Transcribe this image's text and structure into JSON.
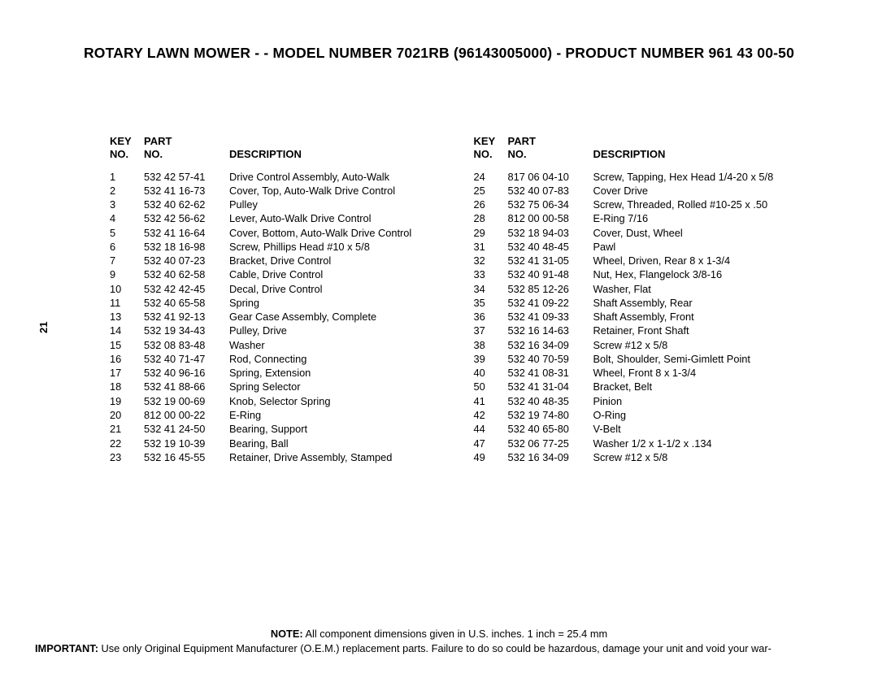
{
  "title": {
    "prefix": "ROTARY LAWN MOWER - - MODEL NUMBER ",
    "model": "7021RB",
    "mid": "  (96143005000) - PRODUCT NUMBER 961 43 00-50"
  },
  "page_number": "21",
  "headers": {
    "key_line1": "KEY",
    "key_line2": "NO.",
    "part_line1": "PART",
    "part_line2": "NO.",
    "desc": "DESCRIPTION"
  },
  "columns": [
    [
      {
        "key": "1",
        "part": "532 42 57-41",
        "desc": "Drive Control Assembly, Auto-Walk"
      },
      {
        "key": "2",
        "part": "532 41 16-73",
        "desc": "Cover, Top, Auto-Walk Drive Control"
      },
      {
        "key": "3",
        "part": "532 40 62-62",
        "desc": "Pulley"
      },
      {
        "key": "4",
        "part": "532 42 56-62",
        "desc": "Lever, Auto-Walk Drive Control"
      },
      {
        "key": "5",
        "part": "532 41 16-64",
        "desc": "Cover, Bottom, Auto-Walk Drive Control"
      },
      {
        "key": "6",
        "part": "532 18 16-98",
        "desc": "Screw, Phillips Head  #10 x 5/8"
      },
      {
        "key": "7",
        "part": "532 40 07-23",
        "desc": "Bracket, Drive Control"
      },
      {
        "key": "9",
        "part": "532 40 62-58",
        "desc": "Cable, Drive Control"
      },
      {
        "key": "10",
        "part": "532 42 42-45",
        "desc": "Decal, Drive Control"
      },
      {
        "key": "11",
        "part": "532 40 65-58",
        "desc": "Spring"
      },
      {
        "key": "13",
        "part": "532 41 92-13",
        "desc": "Gear Case Assembly, Complete"
      },
      {
        "key": "14",
        "part": "532 19 34-43",
        "desc": "Pulley, Drive"
      },
      {
        "key": "15",
        "part": "532 08 83-48",
        "desc": "Washer"
      },
      {
        "key": "16",
        "part": "532 40 71-47",
        "desc": "Rod, Connecting"
      },
      {
        "key": "17",
        "part": "532 40 96-16",
        "desc": "Spring, Extension"
      },
      {
        "key": "18",
        "part": "532 41 88-66",
        "desc": "Spring Selector"
      },
      {
        "key": "19",
        "part": "532 19 00-69",
        "desc": "Knob, Selector Spring"
      },
      {
        "key": "20",
        "part": "812 00 00-22",
        "desc": "E-Ring"
      },
      {
        "key": "21",
        "part": "532 41 24-50",
        "desc": "Bearing, Support"
      },
      {
        "key": "22",
        "part": "532 19 10-39",
        "desc": "Bearing, Ball"
      },
      {
        "key": "23",
        "part": "532 16 45-55",
        "desc": "Retainer, Drive Assembly, Stamped"
      }
    ],
    [
      {
        "key": "24",
        "part": "817 06 04-10",
        "desc": "Screw, Tapping, Hex Head  1/4-20 x 5/8"
      },
      {
        "key": "25",
        "part": "532 40 07-83",
        "desc": "Cover Drive"
      },
      {
        "key": "26",
        "part": "532 75 06-34",
        "desc": "Screw, Threaded, Rolled  #10-25 x .50"
      },
      {
        "key": "28",
        "part": "812 00 00-58",
        "desc": "E-Ring  7/16"
      },
      {
        "key": "29",
        "part": "532 18 94-03",
        "desc": "Cover, Dust, Wheel"
      },
      {
        "key": "31",
        "part": "532 40 48-45",
        "desc": "Pawl"
      },
      {
        "key": "32",
        "part": "532 41 31-05",
        "desc": "Wheel, Driven, Rear  8 x 1-3/4"
      },
      {
        "key": "33",
        "part": "532 40 91-48",
        "desc": "Nut, Hex, Flangelock  3/8-16"
      },
      {
        "key": "34",
        "part": "532 85 12-26",
        "desc": "Washer, Flat"
      },
      {
        "key": "35",
        "part": "532 41 09-22",
        "desc": "Shaft Assembly, Rear"
      },
      {
        "key": "36",
        "part": "532 41 09-33",
        "desc": "Shaft Assembly, Front"
      },
      {
        "key": "37",
        "part": "532 16 14-63",
        "desc": "Retainer, Front Shaft"
      },
      {
        "key": "38",
        "part": "532 16 34-09",
        "desc": "Screw  #12 x 5/8"
      },
      {
        "key": "39",
        "part": "532 40 70-59",
        "desc": "Bolt, Shoulder, Semi-Gimlett Point"
      },
      {
        "key": "40",
        "part": "532 41 08-31",
        "desc": "Wheel, Front  8 x 1-3/4"
      },
      {
        "key": "50",
        "part": "532 41 31-04",
        "desc": "Bracket, Belt"
      },
      {
        "key": "41",
        "part": "532 40 48-35",
        "desc": "Pinion"
      },
      {
        "key": "42",
        "part": "532 19 74-80",
        "desc": "O-Ring"
      },
      {
        "key": "44",
        "part": "532 40 65-80",
        "desc": "V-Belt"
      },
      {
        "key": "47",
        "part": "532 06 77-25",
        "desc": "Washer  1/2 x 1-1/2  x .134"
      },
      {
        "key": "49",
        "part": "532 16 34-09",
        "desc": "Screw  #12 x 5/8"
      }
    ]
  ],
  "footer": {
    "note_label": "NOTE:",
    "note_text": "  All component dimensions given in U.S. inches.  1 inch = 25.4 mm",
    "imp_label": "IMPORTANT:",
    "imp_text": " Use only Original Equipment Manufacturer (O.E.M.) replacement parts.  Failure to do so could be hazardous, damage your unit and void your war-"
  }
}
